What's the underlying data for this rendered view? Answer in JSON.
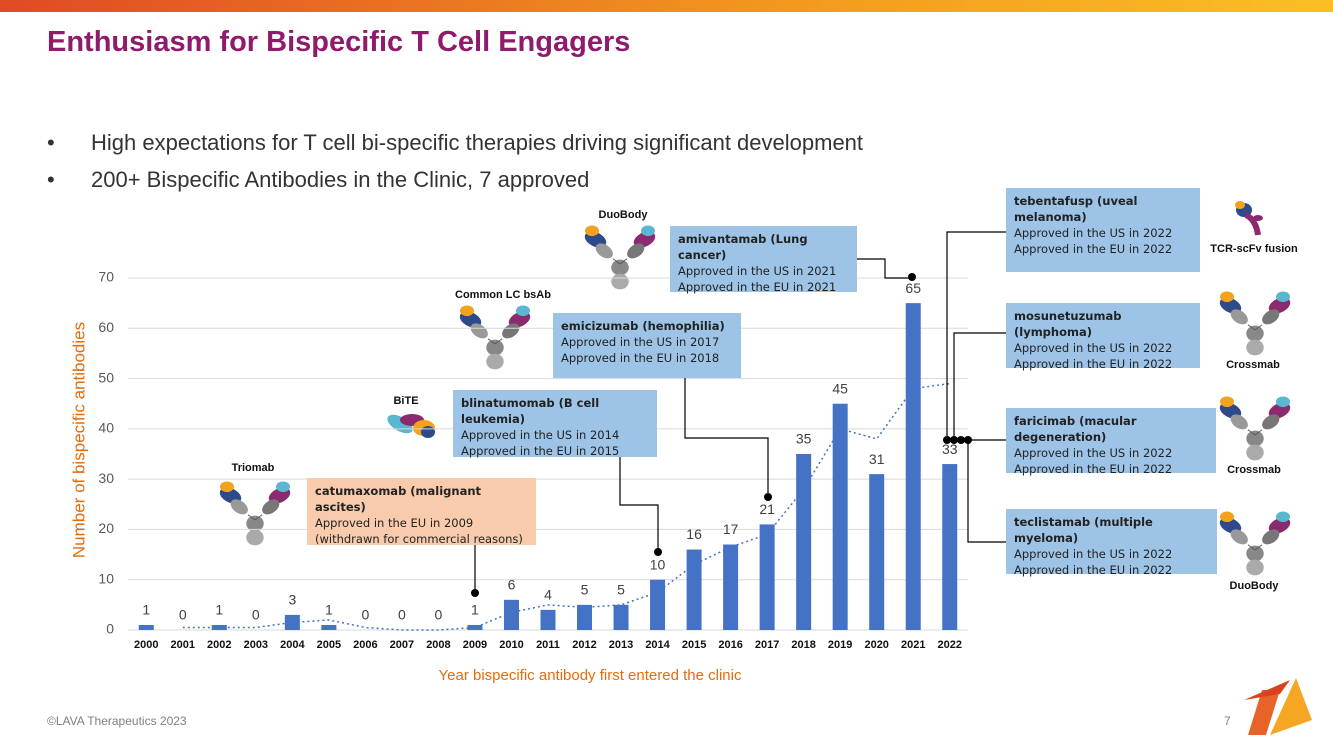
{
  "header": {
    "title": "Enthusiasm for Bispecific T Cell Engagers"
  },
  "bullets": [
    "High expectations for T cell bi-specific therapies driving significant development",
    "200+ Bispecific Antibodies in the Clinic, 7 approved"
  ],
  "chart_data": {
    "type": "bar",
    "x_label": "Year bispecific antibody first entered the clinic",
    "y_label": "Number of bispecific antibodies",
    "categories": [
      "2000",
      "2001",
      "2002",
      "2003",
      "2004",
      "2005",
      "2006",
      "2007",
      "2008",
      "2009",
      "2010",
      "2011",
      "2012",
      "2013",
      "2014",
      "2015",
      "2016",
      "2017",
      "2018",
      "2019",
      "2020",
      "2021",
      "2022"
    ],
    "values": [
      1,
      0,
      1,
      0,
      3,
      1,
      0,
      0,
      0,
      1,
      6,
      4,
      5,
      5,
      10,
      16,
      17,
      21,
      35,
      45,
      31,
      65,
      33
    ],
    "color": "#4472c4",
    "trend_values": [
      null,
      0.5,
      0.5,
      0.5,
      1.5,
      2,
      0.5,
      0,
      0,
      0.5,
      3.5,
      5,
      4.5,
      5,
      7.5,
      13,
      16.5,
      19,
      28,
      40,
      38,
      48,
      49
    ],
    "trend_color": "#4472c4",
    "ylim": [
      0,
      70
    ],
    "yticks": [
      0,
      10,
      20,
      30,
      40,
      50,
      60,
      70
    ],
    "grid": true
  },
  "annotations": [
    {
      "title": "catumaxomab (malignant ascites)",
      "lines": [
        "Approved in the EU in 2009",
        "(withdrawn for commercial reasons)"
      ]
    },
    {
      "title": "blinatumomab (B cell leukemia)",
      "lines": [
        "Approved in the US in 2014",
        "Approved in the EU in 2015"
      ]
    },
    {
      "title": "emicizumab (hemophilia)",
      "lines": [
        "Approved in the US in 2017",
        "Approved in the EU in 2018"
      ]
    },
    {
      "title": "amivantamab  (Lung cancer)",
      "lines": [
        "Approved in the US in 2021",
        "Approved in the EU in 2021"
      ]
    },
    {
      "title": "tebentafusp  (uveal melanoma)",
      "lines": [
        "Approved in the US in 2022",
        "Approved in the EU in 2022"
      ]
    },
    {
      "title": "mosunetuzumab (lymphoma)",
      "lines": [
        "Approved in the US in 2022",
        "Approved in the EU in 2022"
      ]
    },
    {
      "title": "faricimab (macular degeneration)",
      "lines": [
        "Approved in the US in 2022",
        "Approved in the EU in 2022"
      ]
    },
    {
      "title": "teclistamab (multiple myeloma)",
      "lines": [
        "Approved in the US in 2022",
        "Approved in the EU in 2022"
      ]
    }
  ],
  "formats": [
    "Triomab",
    "BiTE",
    "Common LC bsAb",
    "DuoBody",
    "TCR-scFv fusion",
    "Crossmab",
    "Crossmab",
    "DuoBody"
  ],
  "footer": {
    "copyright": "©LAVA Therapeutics 2023",
    "page": "7"
  }
}
